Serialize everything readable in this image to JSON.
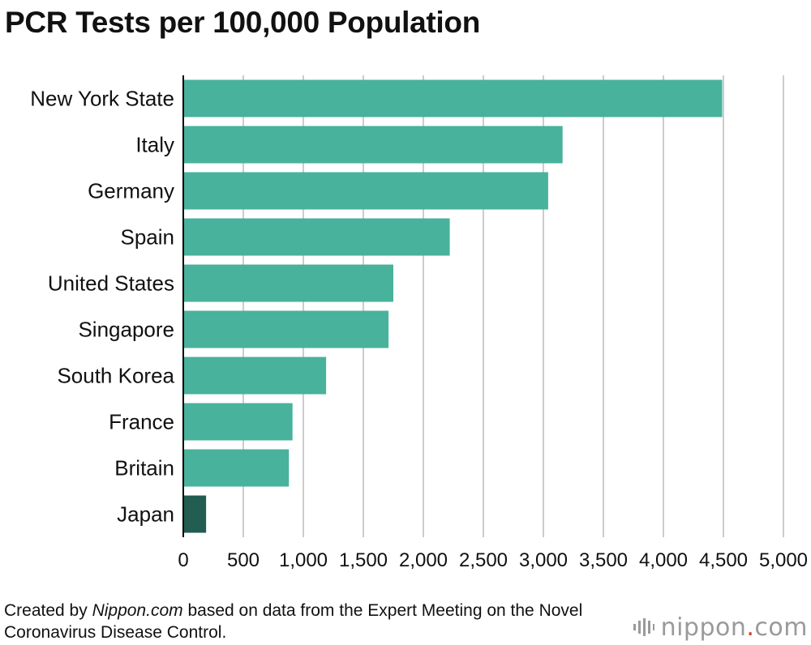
{
  "chart_data": {
    "type": "bar",
    "orientation": "horizontal",
    "title": "PCR Tests per 100,000 Population",
    "categories": [
      "New York State",
      "Italy",
      "Germany",
      "Spain",
      "United States",
      "Singapore",
      "South Korea",
      "France",
      "Britain",
      "Japan"
    ],
    "values": [
      4490,
      3160,
      3040,
      2220,
      1750,
      1710,
      1190,
      910,
      880,
      190
    ],
    "highlight": "Japan",
    "xlim": [
      0,
      5000
    ],
    "xticks": [
      0,
      500,
      1000,
      1500,
      2000,
      2500,
      3000,
      3500,
      4000,
      4500,
      5000
    ],
    "xtick_labels": [
      "0",
      "500",
      "1,000",
      "1,500",
      "2,000",
      "2,500",
      "3,000",
      "3,500",
      "4,000",
      "4,500",
      "5,000"
    ],
    "grid": "vertical",
    "colors": {
      "bar": "#48b29c",
      "highlight": "#235c51",
      "grid": "#cccccc",
      "axis": "#000000"
    }
  },
  "source": {
    "prefix": "Created by ",
    "site": "Nippon.com",
    "suffix": " based on data from the Expert Meeting on the Novel Coronavirus Disease Control."
  },
  "logo": {
    "name": "nippon",
    "dot": ".",
    "tld": "com",
    "icon": "nippon-sound-bars-icon",
    "dot_color": "#d33a2c"
  }
}
